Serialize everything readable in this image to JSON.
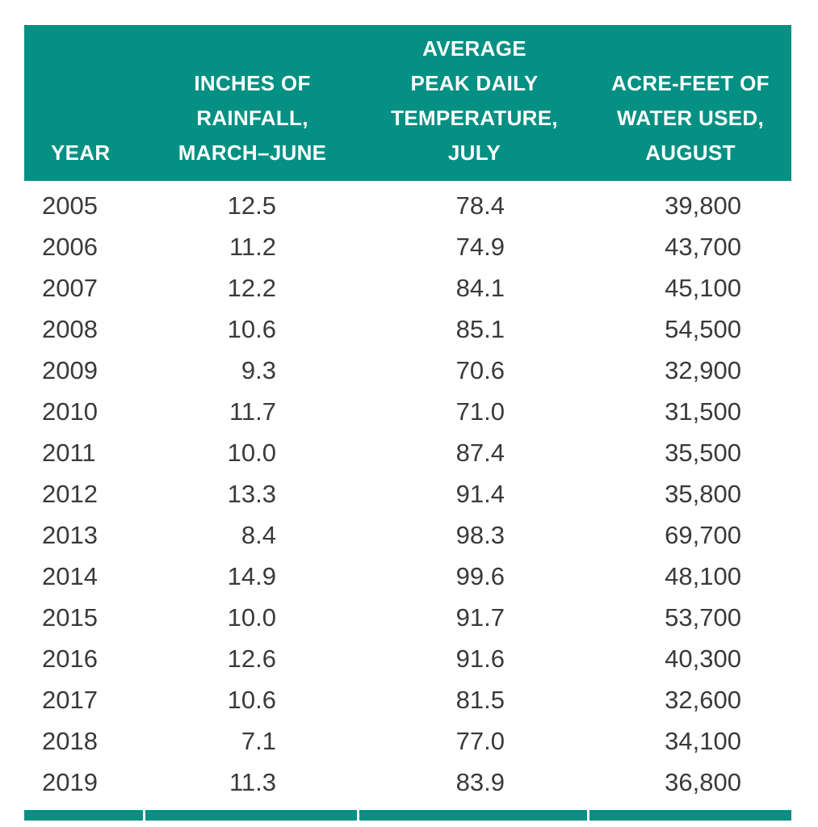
{
  "chart_data": {
    "type": "table",
    "title": "",
    "columns": [
      "YEAR",
      "INCHES OF RAINFALL, MARCH–JUNE",
      "AVERAGE PEAK DAILY TEMPERATURE, JULY",
      "ACRE-FEET OF WATER USED, AUGUST"
    ],
    "rows": [
      [
        "2005",
        "12.5",
        "78.4",
        "39,800"
      ],
      [
        "2006",
        "11.2",
        "74.9",
        "43,700"
      ],
      [
        "2007",
        "12.2",
        "84.1",
        "45,100"
      ],
      [
        "2008",
        "10.6",
        "85.1",
        "54,500"
      ],
      [
        "2009",
        "9.3",
        "70.6",
        "32,900"
      ],
      [
        "2010",
        "11.7",
        "71.0",
        "31,500"
      ],
      [
        "2011",
        "10.0",
        "87.4",
        "35,500"
      ],
      [
        "2012",
        "13.3",
        "91.4",
        "35,800"
      ],
      [
        "2013",
        "8.4",
        "98.3",
        "69,700"
      ],
      [
        "2014",
        "14.9",
        "99.6",
        "48,100"
      ],
      [
        "2015",
        "10.0",
        "91.7",
        "53,700"
      ],
      [
        "2016",
        "12.6",
        "91.6",
        "40,300"
      ],
      [
        "2017",
        "10.6",
        "81.5",
        "32,600"
      ],
      [
        "2018",
        "7.1",
        "77.0",
        "34,100"
      ],
      [
        "2019",
        "11.3",
        "83.9",
        "36,800"
      ]
    ]
  },
  "header_display": {
    "col1": [
      "YEAR"
    ],
    "col2": [
      "INCHES OF",
      "RAINFALL,",
      "MARCH–JUNE"
    ],
    "col3": [
      "AVERAGE",
      "PEAK DAILY",
      "TEMPERATURE,",
      "JULY"
    ],
    "col4": [
      "ACRE-FEET OF",
      "WATER USED,",
      "AUGUST"
    ]
  },
  "colors": {
    "header_bg": "#049083",
    "header_text": "#ffffff",
    "body_text": "#3a3a3a",
    "divider": "#ffffff"
  }
}
